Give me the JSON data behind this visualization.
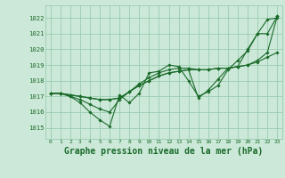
{
  "background_color": "#cce8d8",
  "grid_color": "#99ccb0",
  "line_color": "#1a6b2a",
  "marker_color": "#1a6b2a",
  "xlabel": "Graphe pression niveau de la mer (hPa)",
  "xlabel_fontsize": 7,
  "ylim": [
    1014.3,
    1022.8
  ],
  "xlim": [
    -0.5,
    23.5
  ],
  "yticks": [
    1015,
    1016,
    1017,
    1018,
    1019,
    1020,
    1021,
    1022
  ],
  "xticks": [
    0,
    1,
    2,
    3,
    4,
    5,
    6,
    7,
    8,
    9,
    10,
    11,
    12,
    13,
    14,
    15,
    16,
    17,
    18,
    19,
    20,
    21,
    22,
    23
  ],
  "series": [
    [
      1017.2,
      1017.2,
      1017.0,
      1016.6,
      1016.0,
      1015.5,
      1015.1,
      1017.1,
      1016.6,
      1017.2,
      1018.5,
      1018.6,
      1019.0,
      1018.9,
      1018.0,
      1017.0,
      1017.3,
      1017.7,
      1018.7,
      1019.3,
      1019.9,
      1021.0,
      1021.9,
      1022.0
    ],
    [
      1017.2,
      1017.2,
      1017.0,
      1016.8,
      1016.5,
      1016.2,
      1016.0,
      1016.8,
      1017.3,
      1017.8,
      1018.2,
      1018.5,
      1018.7,
      1018.8,
      1018.8,
      1018.7,
      1018.7,
      1018.8,
      1018.8,
      1018.9,
      1019.0,
      1019.2,
      1019.5,
      1019.8
    ],
    [
      1017.2,
      1017.2,
      1017.1,
      1017.0,
      1016.9,
      1016.8,
      1016.8,
      1016.9,
      1017.3,
      1017.7,
      1018.0,
      1018.3,
      1018.5,
      1018.6,
      1018.7,
      1018.7,
      1018.7,
      1018.8,
      1018.8,
      1018.9,
      1019.0,
      1019.3,
      1019.8,
      1022.1
    ],
    [
      1017.2,
      1017.2,
      1017.1,
      1017.0,
      1016.9,
      1016.8,
      1016.8,
      1016.9,
      1017.3,
      1017.7,
      1018.0,
      1018.3,
      1018.5,
      1018.6,
      1018.7,
      1016.9,
      1017.4,
      1018.1,
      1018.8,
      1018.9,
      1020.0,
      1021.0,
      1021.0,
      1022.1
    ]
  ]
}
